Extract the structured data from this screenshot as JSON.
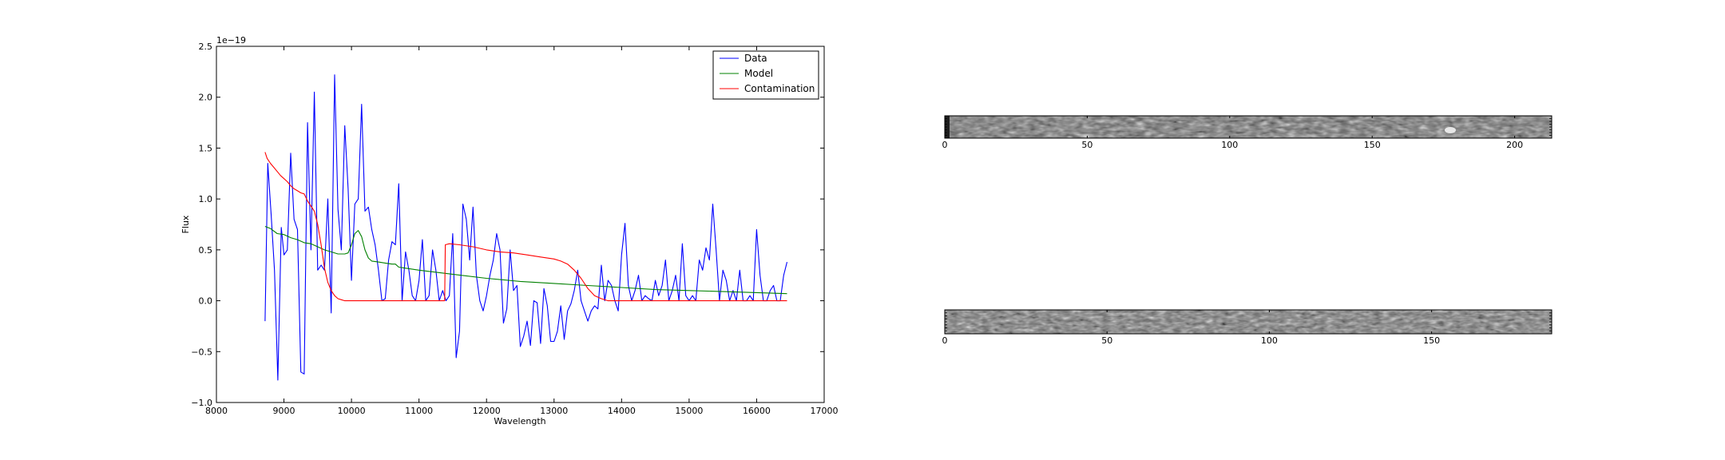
{
  "chart_data": [
    {
      "type": "line",
      "title": "",
      "xlabel": "Wavelength",
      "ylabel": "Flux",
      "offset_label": "1e−19",
      "xlim": [
        8000,
        17000
      ],
      "ylim": [
        -1.0,
        2.5
      ],
      "xticks": [
        8000,
        9000,
        10000,
        11000,
        12000,
        13000,
        14000,
        15000,
        16000,
        17000
      ],
      "xtick_labels": [
        "8000",
        "9000",
        "10000",
        "11000",
        "12000",
        "13000",
        "14000",
        "15000",
        "16000",
        "17000"
      ],
      "yticks": [
        -1.0,
        -0.5,
        0.0,
        0.5,
        1.0,
        1.5,
        2.0,
        2.5
      ],
      "ytick_labels": [
        "−1.0",
        "−0.5",
        "0.0",
        "0.5",
        "1.0",
        "1.5",
        "2.0",
        "2.5"
      ],
      "legend_position": "top-right",
      "series": [
        {
          "name": "Data",
          "color": "#0000ff",
          "x": [
            8720,
            8760,
            8810,
            8860,
            8910,
            8960,
            9000,
            9050,
            9100,
            9150,
            9200,
            9250,
            9300,
            9350,
            9400,
            9450,
            9500,
            9550,
            9600,
            9650,
            9700,
            9750,
            9800,
            9850,
            9900,
            9950,
            10000,
            10050,
            10100,
            10150,
            10200,
            10250,
            10300,
            10350,
            10400,
            10450,
            10500,
            10550,
            10600,
            10650,
            10700,
            10750,
            10800,
            10850,
            10900,
            10950,
            11000,
            11050,
            11100,
            11150,
            11200,
            11250,
            11300,
            11350,
            11400,
            11450,
            11500,
            11550,
            11600,
            11650,
            11700,
            11750,
            11800,
            11850,
            11900,
            11950,
            12000,
            12050,
            12100,
            12150,
            12200,
            12250,
            12300,
            12350,
            12400,
            12450,
            12500,
            12550,
            12600,
            12650,
            12700,
            12750,
            12800,
            12850,
            12900,
            12950,
            13000,
            13050,
            13100,
            13150,
            13200,
            13250,
            13300,
            13350,
            13400,
            13450,
            13500,
            13550,
            13600,
            13650,
            13700,
            13750,
            13800,
            13850,
            13900,
            13950,
            14000,
            14050,
            14100,
            14150,
            14200,
            14250,
            14300,
            14350,
            14400,
            14450,
            14500,
            14550,
            14600,
            14650,
            14700,
            14750,
            14800,
            14850,
            14900,
            14950,
            15000,
            15050,
            15100,
            15150,
            15200,
            15250,
            15300,
            15350,
            15400,
            15450,
            15500,
            15550,
            15600,
            15650,
            15700,
            15750,
            15800,
            15850,
            15900,
            15950,
            16000,
            16050,
            16100,
            16150,
            16200,
            16250,
            16300,
            16350,
            16400,
            16450
          ],
          "y": [
            -0.2,
            1.35,
            0.85,
            0.3,
            -0.78,
            0.72,
            0.45,
            0.5,
            1.45,
            0.8,
            0.7,
            -0.7,
            -0.72,
            1.75,
            0.5,
            2.05,
            0.3,
            0.35,
            0.3,
            1.0,
            -0.12,
            2.22,
            0.9,
            0.5,
            1.72,
            1.1,
            0.2,
            0.95,
            1.0,
            1.93,
            0.88,
            0.92,
            0.7,
            0.55,
            0.3,
            0.0,
            0.02,
            0.4,
            0.58,
            0.55,
            1.15,
            0.0,
            0.48,
            0.3,
            0.05,
            0.0,
            0.2,
            0.6,
            0.0,
            0.05,
            0.5,
            0.3,
            0.0,
            0.1,
            0.0,
            0.05,
            0.66,
            -0.56,
            -0.3,
            0.95,
            0.8,
            0.4,
            0.92,
            0.25,
            0.0,
            -0.1,
            0.05,
            0.25,
            0.4,
            0.66,
            0.5,
            -0.22,
            -0.08,
            0.5,
            0.1,
            0.15,
            -0.45,
            -0.35,
            -0.2,
            -0.44,
            0.0,
            -0.02,
            -0.42,
            0.12,
            -0.05,
            -0.4,
            -0.4,
            -0.3,
            -0.05,
            -0.38,
            -0.1,
            -0.03,
            0.1,
            0.3,
            0.0,
            -0.1,
            -0.2,
            -0.1,
            -0.05,
            -0.08,
            0.35,
            0.0,
            0.2,
            0.15,
            0.0,
            -0.1,
            0.45,
            0.76,
            0.15,
            0.0,
            0.1,
            0.25,
            0.0,
            0.05,
            0.02,
            0.0,
            0.2,
            0.05,
            0.15,
            0.4,
            0.0,
            0.1,
            0.25,
            0.0,
            0.56,
            0.05,
            0.0,
            0.05,
            0.0,
            0.4,
            0.3,
            0.52,
            0.4,
            0.95,
            0.5,
            0.0,
            0.3,
            0.2,
            0.0,
            0.1,
            0.0,
            0.3,
            0.0,
            0.0,
            0.05,
            0.0,
            0.7,
            0.25,
            0.0,
            0.0,
            0.1,
            0.15,
            0.0,
            0.0,
            0.25,
            0.38
          ]
        },
        {
          "name": "Model",
          "color": "#008000",
          "x": [
            8720,
            8800,
            8900,
            9000,
            9100,
            9200,
            9300,
            9400,
            9500,
            9600,
            9700,
            9800,
            9900,
            9950,
            10000,
            10050,
            10100,
            10150,
            10200,
            10250,
            10300,
            10400,
            10500,
            10600,
            10650,
            10700,
            10800,
            11000,
            11500,
            12000,
            12500,
            13000,
            13500,
            14000,
            14500,
            15000,
            15500,
            16000,
            16450
          ],
          "y": [
            0.73,
            0.71,
            0.66,
            0.65,
            0.62,
            0.6,
            0.57,
            0.56,
            0.53,
            0.5,
            0.48,
            0.46,
            0.46,
            0.47,
            0.55,
            0.66,
            0.69,
            0.63,
            0.5,
            0.42,
            0.39,
            0.38,
            0.37,
            0.36,
            0.36,
            0.33,
            0.32,
            0.3,
            0.26,
            0.22,
            0.19,
            0.17,
            0.15,
            0.13,
            0.11,
            0.1,
            0.09,
            0.08,
            0.07
          ]
        },
        {
          "name": "Contamination",
          "color": "#ff0000",
          "x": [
            8720,
            8750,
            8800,
            8850,
            8900,
            8950,
            9000,
            9050,
            9100,
            9150,
            9200,
            9250,
            9300,
            9350,
            9400,
            9450,
            9500,
            9550,
            9600,
            9650,
            9700,
            9750,
            9800,
            9850,
            9900,
            10000,
            10200,
            10500,
            11000,
            11380,
            11390,
            11450,
            11600,
            11800,
            12000,
            12200,
            12400,
            12600,
            12800,
            13000,
            13100,
            13200,
            13300,
            13400,
            13500,
            13600,
            13700,
            13800,
            14000,
            15000,
            16000,
            16450
          ],
          "y": [
            1.46,
            1.4,
            1.35,
            1.31,
            1.27,
            1.23,
            1.2,
            1.17,
            1.13,
            1.1,
            1.08,
            1.06,
            1.05,
            0.98,
            0.93,
            0.88,
            0.75,
            0.55,
            0.32,
            0.18,
            0.1,
            0.05,
            0.02,
            0.01,
            0.0,
            0.0,
            0.0,
            0.0,
            0.0,
            0.0,
            0.55,
            0.56,
            0.55,
            0.53,
            0.5,
            0.48,
            0.47,
            0.45,
            0.43,
            0.41,
            0.39,
            0.36,
            0.3,
            0.22,
            0.12,
            0.05,
            0.02,
            0.0,
            0.0,
            0.0,
            0.0,
            0.0
          ]
        }
      ]
    },
    {
      "type": "heatmap",
      "title": "",
      "xlabel": "",
      "ylabel": "",
      "xlim": [
        0,
        213
      ],
      "ylim": [
        0,
        8
      ],
      "xticks": [
        0,
        50,
        100,
        150,
        200
      ],
      "xtick_labels": [
        "0",
        "50",
        "100",
        "150",
        "200"
      ],
      "colormap": "gray"
    },
    {
      "type": "heatmap",
      "title": "",
      "xlabel": "",
      "ylabel": "",
      "xlim": [
        0,
        187
      ],
      "ylim": [
        0,
        8
      ],
      "xticks": [
        0,
        50,
        100,
        150
      ],
      "xtick_labels": [
        "0",
        "50",
        "100",
        "150"
      ],
      "colormap": "gray"
    }
  ]
}
